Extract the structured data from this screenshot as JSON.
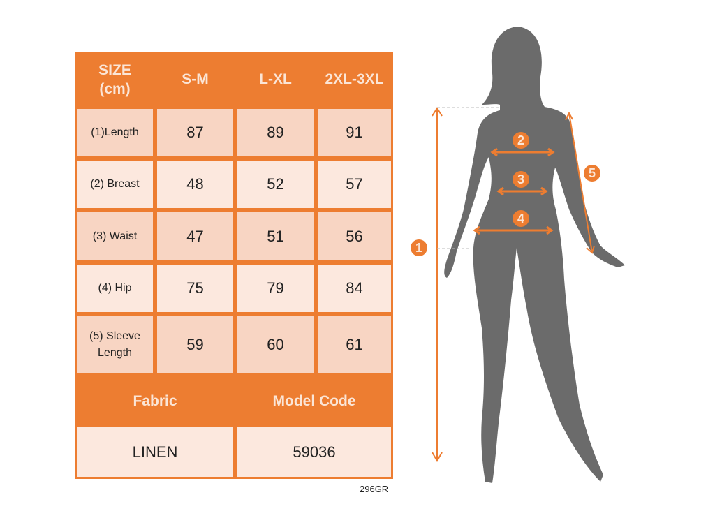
{
  "table": {
    "header": [
      "SIZE\n(cm)",
      "S-M",
      "L-XL",
      "2XL-3XL"
    ],
    "header_size_line1": "SIZE",
    "header_size_line2": "(cm)",
    "rows": [
      {
        "label": "(1)Length",
        "values": [
          "87",
          "89",
          "91"
        ]
      },
      {
        "label": "(2) Breast",
        "values": [
          "48",
          "52",
          "57"
        ]
      },
      {
        "label": "(3) Waist",
        "values": [
          "47",
          "51",
          "56"
        ]
      },
      {
        "label": "(4) Hip",
        "values": [
          "75",
          "79",
          "84"
        ]
      },
      {
        "label_line1": "(5) Sleeve",
        "label_line2": "Length",
        "values": [
          "59",
          "60",
          "61"
        ]
      }
    ],
    "fabric_header": "Fabric",
    "model_code_header": "Model Code",
    "fabric_value": "LINEN",
    "model_code_value": "59036"
  },
  "product_code": "296GR",
  "figure": {
    "markers": [
      "1",
      "2",
      "3",
      "4",
      "5"
    ],
    "colors": {
      "accent": "#ed7d31",
      "silhouette": "#6b6b6b",
      "header_text": "#fbe5d6"
    }
  }
}
